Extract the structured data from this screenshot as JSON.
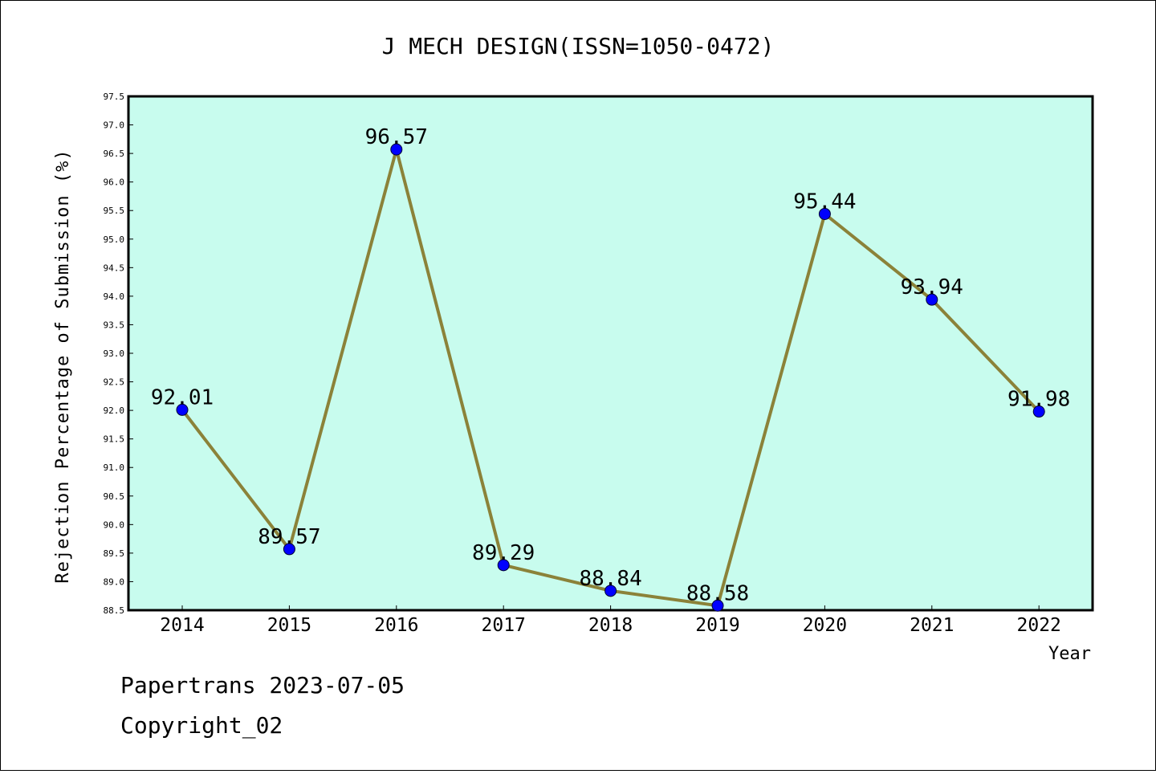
{
  "chart_data": {
    "type": "line",
    "title": "J MECH DESIGN(ISSN=1050-0472)",
    "xlabel": "Year",
    "ylabel": "Rejection Percentage of Submission (%)",
    "categories": [
      "2014",
      "2015",
      "2016",
      "2017",
      "2018",
      "2019",
      "2020",
      "2021",
      "2022"
    ],
    "series": [
      {
        "values": [
          92.01,
          89.57,
          96.57,
          89.29,
          88.84,
          88.58,
          95.44,
          93.94,
          91.98
        ]
      }
    ],
    "data_labels": [
      "92.01",
      "89.57",
      "96.57",
      "89.29",
      "88.84",
      "88.58",
      "95.44",
      "93.94",
      "91.98"
    ],
    "ylim": [
      88.5,
      97.5
    ],
    "yticks": [
      "88.5",
      "89.0",
      "89.5",
      "90.0",
      "90.5",
      "91.0",
      "91.5",
      "92.0",
      "92.5",
      "93.0",
      "93.5",
      "94.0",
      "94.5",
      "95.0",
      "95.5",
      "96.0",
      "96.5",
      "97.0",
      "97.5"
    ],
    "grid": false,
    "colors": {
      "plot_background": "#c8fcee",
      "line": "#8b8239",
      "marker": "#0000ff"
    }
  },
  "footer": {
    "line1": "Papertrans 2023-07-05",
    "line2": "Copyright_02"
  }
}
